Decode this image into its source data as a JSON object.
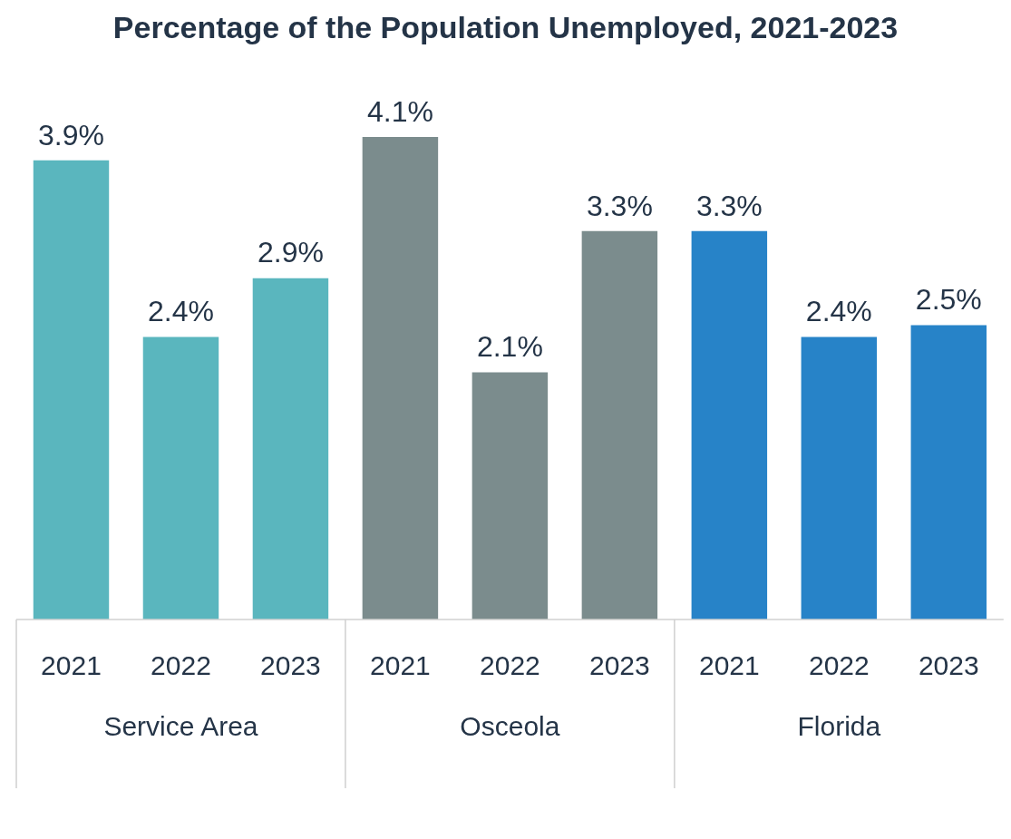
{
  "chart_data": {
    "type": "bar",
    "title": "Percentage of the Population Unemployed, 2021-2023",
    "categories": [
      "2021",
      "2022",
      "2023",
      "2021",
      "2022",
      "2023",
      "2021",
      "2022",
      "2023"
    ],
    "values": [
      3.9,
      2.4,
      2.9,
      4.1,
      2.1,
      3.3,
      3.3,
      2.4,
      2.5
    ],
    "value_labels": [
      "3.9%",
      "2.4%",
      "2.9%",
      "4.1%",
      "2.1%",
      "3.3%",
      "3.3%",
      "2.4%",
      "2.5%"
    ],
    "colors": [
      "#5ab6be",
      "#5ab6be",
      "#5ab6be",
      "#7b8c8d",
      "#7b8c8d",
      "#7b8c8d",
      "#2783c8",
      "#2783c8",
      "#2783c8"
    ],
    "annotations": [
      "Service Area",
      "Osceola",
      "Florida"
    ],
    "grid": false,
    "legend": false
  }
}
